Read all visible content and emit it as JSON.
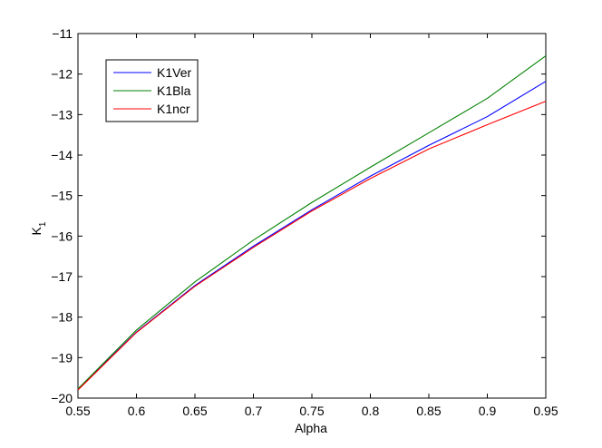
{
  "chart_data": {
    "type": "line",
    "title": "",
    "xlabel": "Alpha",
    "ylabel_main": "K",
    "ylabel_sub": "1",
    "xlim": [
      0.55,
      0.95
    ],
    "ylim": [
      -20,
      -11
    ],
    "xticks": [
      0.55,
      0.6,
      0.65,
      0.7,
      0.75,
      0.8,
      0.85,
      0.9,
      0.95
    ],
    "xtick_labels": [
      "0.55",
      "0.6",
      "0.65",
      "0.7",
      "0.75",
      "0.8",
      "0.85",
      "0.9",
      "0.95"
    ],
    "yticks": [
      -20,
      -19,
      -18,
      -17,
      -16,
      -15,
      -14,
      -13,
      -12,
      -11
    ],
    "ytick_labels": [
      "−20",
      "−19",
      "−18",
      "−17",
      "−16",
      "−15",
      "−14",
      "−13",
      "−12",
      "−11"
    ],
    "grid": false,
    "legend_position": "top-left",
    "x": [
      0.55,
      0.6,
      0.65,
      0.7,
      0.75,
      0.8,
      0.85,
      0.9,
      0.95
    ],
    "series": [
      {
        "name": "K1Ver",
        "color": "#0000ff",
        "values": [
          -19.78,
          -18.37,
          -17.22,
          -16.25,
          -15.35,
          -14.52,
          -13.76,
          -13.05,
          -12.18
        ]
      },
      {
        "name": "K1Bla",
        "color": "#008000",
        "values": [
          -19.77,
          -18.32,
          -17.13,
          -16.1,
          -15.17,
          -14.3,
          -13.45,
          -12.6,
          -11.55
        ]
      },
      {
        "name": "K1ncr",
        "color": "#ff0000",
        "values": [
          -19.8,
          -18.38,
          -17.24,
          -16.28,
          -15.38,
          -14.58,
          -13.85,
          -13.25,
          -12.67
        ]
      }
    ]
  }
}
